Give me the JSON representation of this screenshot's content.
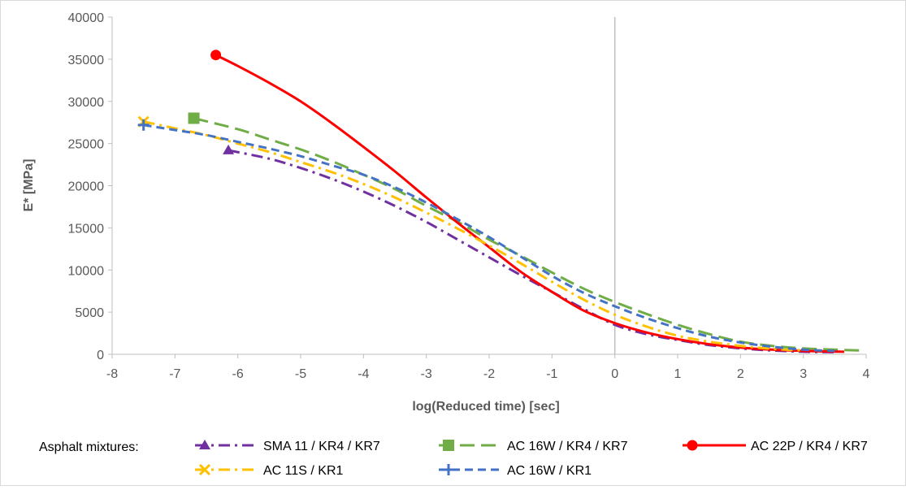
{
  "chart_data": {
    "type": "line",
    "xlabel": "log(Reduced time) [sec]",
    "ylabel": "E* [MPa]",
    "xlim": [
      -8,
      4
    ],
    "ylim": [
      0,
      40000
    ],
    "x_ticks": [
      "-8",
      "-7",
      "-6",
      "-5",
      "-4",
      "-3",
      "-2",
      "-1",
      "0",
      "1",
      "2",
      "3",
      "4"
    ],
    "y_ticks": [
      "0",
      "5000",
      "10000",
      "15000",
      "20000",
      "25000",
      "30000",
      "35000",
      "40000"
    ],
    "grid": "vertical line at x = 0",
    "legend_title": "Asphalt mixtures:",
    "legend_position": "bottom",
    "series": [
      {
        "name": "SMA 11 / KR4 / KR7",
        "color": "#7030A0",
        "dash": "dash-dot",
        "marker": "triangle",
        "x": [
          -6.15,
          -5.5,
          -5,
          -4.5,
          -4,
          -3.5,
          -3,
          -2.5,
          -2,
          -1.5,
          -1,
          -0.5,
          0,
          0.5,
          1,
          1.5,
          2,
          2.5,
          3,
          3.5
        ],
        "y": [
          24200,
          23200,
          22100,
          20800,
          19300,
          17600,
          15700,
          13600,
          11500,
          9400,
          7400,
          5400,
          3500,
          2400,
          1700,
          1100,
          700,
          450,
          300,
          250
        ]
      },
      {
        "name": "AC 16W / KR4 / KR7",
        "color": "#70AD47",
        "dash": "long-dash",
        "marker": "square",
        "x": [
          -6.7,
          -6,
          -5.5,
          -5,
          -4.5,
          -4,
          -3.5,
          -3,
          -2.5,
          -2,
          -1.5,
          -1,
          -0.5,
          0,
          0.5,
          1,
          1.5,
          2,
          2.5,
          3,
          3.5,
          3.9
        ],
        "y": [
          28000,
          26700,
          25500,
          24300,
          22900,
          21300,
          19600,
          17600,
          15700,
          13600,
          11700,
          9700,
          7800,
          6200,
          4800,
          3500,
          2400,
          1500,
          1000,
          700,
          550,
          450
        ]
      },
      {
        "name": "AC 22P / KR4 / KR7",
        "color": "#FF0000",
        "dash": "solid",
        "marker": "circle",
        "x": [
          -6.35,
          -6,
          -5.5,
          -5,
          -4.5,
          -4,
          -3.5,
          -3,
          -2.5,
          -2,
          -1.5,
          -1,
          -0.5,
          0,
          0.5,
          1,
          1.5,
          2,
          2.5,
          3,
          3.65
        ],
        "y": [
          35500,
          34200,
          32200,
          30000,
          27400,
          24600,
          21700,
          18600,
          15600,
          12700,
          9800,
          7400,
          5200,
          3700,
          2600,
          1800,
          1200,
          800,
          550,
          400,
          300
        ]
      },
      {
        "name": "AC 11S / KR1",
        "color": "#FFC000",
        "dash": "dash-dot",
        "marker": "x",
        "x": [
          -7.5,
          -7,
          -6.5,
          -6,
          -5.5,
          -5,
          -4.5,
          -4,
          -3.5,
          -3,
          -2.5,
          -2,
          -1.5,
          -1,
          -0.5,
          0,
          0.5,
          1,
          1.5,
          2,
          2.5,
          3
        ],
        "y": [
          27600,
          26800,
          26000,
          25000,
          24000,
          22800,
          21600,
          20200,
          18600,
          16800,
          14900,
          12900,
          10800,
          8600,
          6500,
          4700,
          3300,
          2200,
          1500,
          1000,
          650,
          450
        ]
      },
      {
        "name": "AC 16W / KR1",
        "color": "#4472C4",
        "dash": "dash",
        "marker": "plus",
        "x": [
          -7.5,
          -7,
          -6.5,
          -6,
          -5.5,
          -5,
          -4.5,
          -4,
          -3.5,
          -3,
          -2.5,
          -2,
          -1.5,
          -1,
          -0.5,
          0,
          0.5,
          1,
          1.5,
          2,
          2.5,
          3,
          3.5
        ],
        "y": [
          27200,
          26600,
          26000,
          25200,
          24400,
          23500,
          22400,
          21300,
          19800,
          18000,
          16000,
          13900,
          11600,
          9300,
          7300,
          5700,
          4300,
          3100,
          2100,
          1400,
          900,
          550,
          400
        ]
      }
    ]
  }
}
